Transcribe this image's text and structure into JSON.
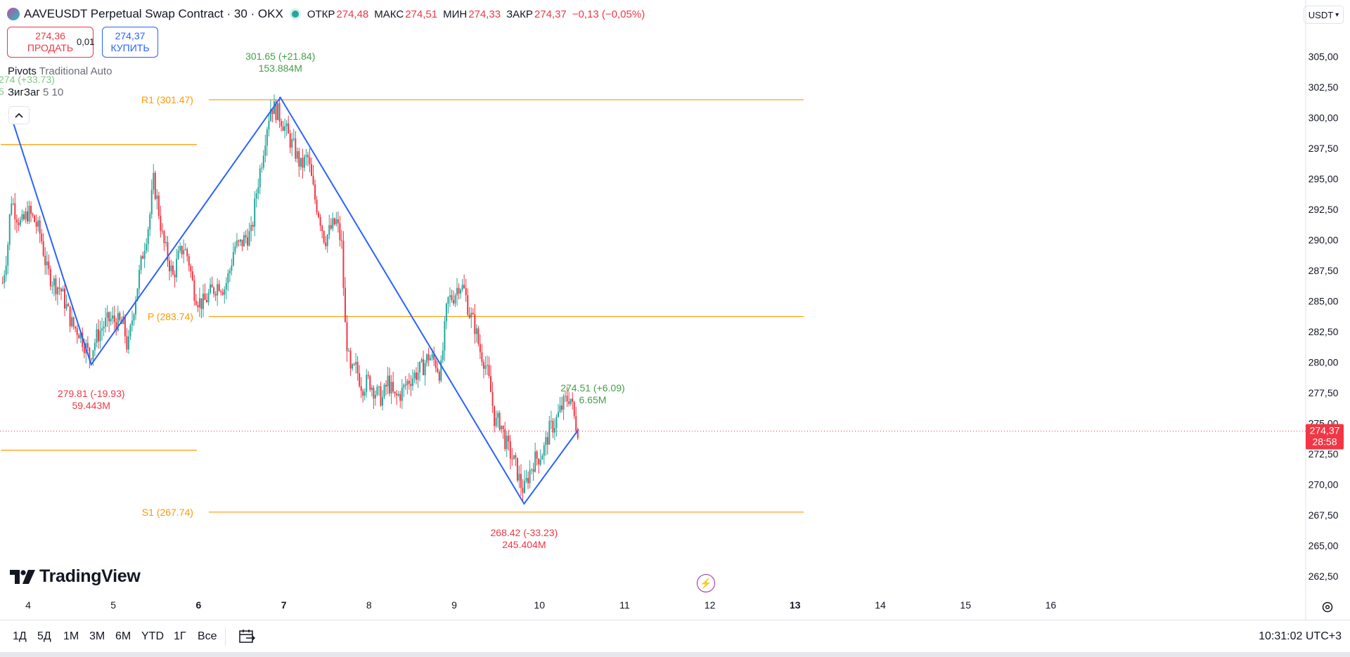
{
  "header": {
    "title": "AAVEUSDT Perpetual Swap Contract · 30 · OKX",
    "open_label": "ОТКР",
    "open": "274,48",
    "high_label": "МАКС",
    "high": "274,51",
    "low_label": "МИН",
    "low": "274,33",
    "close_label": "ЗАКР",
    "close": "274,37",
    "change": "−0,13 (−0,05%)"
  },
  "trade": {
    "sell_price": "274,36",
    "sell_label": "ПРОДАТЬ",
    "spread": "0,01",
    "buy_price": "274,37",
    "buy_label": "КУПИТЬ"
  },
  "indicators": [
    {
      "name": "Pivots",
      "params": "Traditional Auto"
    },
    {
      "name": "ЗигЗаг",
      "params": "5 10"
    }
  ],
  "currency": "USDT",
  "time_ranges": [
    "1Д",
    "5Д",
    "1М",
    "3М",
    "6М",
    "YTD",
    "1Г",
    "Все"
  ],
  "clock": "10:31:02 UTC+3",
  "branding": "TradingView",
  "colors": {
    "up": "#26a69a",
    "down": "#f23645",
    "zigzag": "#2962ff",
    "pivot": "#ff9800",
    "buy": "#2962ff"
  },
  "chart_data": {
    "type": "candlestick",
    "timeframe": "30",
    "x_ticks": [
      "4",
      "5",
      "6",
      "7",
      "8",
      "9",
      "10",
      "11",
      "12",
      "13",
      "14",
      "15",
      "16"
    ],
    "x_tick_values": [
      4,
      5,
      6,
      7,
      8,
      9,
      10,
      11,
      12,
      13,
      14,
      15,
      16
    ],
    "bold_x_ticks": [
      "6",
      "7",
      "13"
    ],
    "y_ticks": [
      "262,50",
      "265,00",
      "267,50",
      "270,00",
      "272,50",
      "275,00",
      "277,50",
      "280,00",
      "282,50",
      "285,00",
      "287,50",
      "290,00",
      "292,50",
      "295,00",
      "297,50",
      "300,00",
      "302,50",
      "305,00"
    ],
    "y_tick_values": [
      262.5,
      265,
      267.5,
      270,
      272.5,
      275,
      277.5,
      280,
      282.5,
      285,
      287.5,
      290,
      292.5,
      295,
      297.5,
      300,
      302.5,
      305
    ],
    "x_range": [
      3.68,
      16.1
    ],
    "y_range": [
      260.4,
      307.2
    ],
    "last_price": {
      "value": 274.37,
      "label": "274,37",
      "countdown": "28:58"
    },
    "price_path": [
      [
        3.7,
        286.5
      ],
      [
        3.76,
        289.5
      ],
      [
        3.8,
        293.5
      ],
      [
        3.85,
        292.3
      ],
      [
        3.92,
        291.2
      ],
      [
        4.0,
        292.3
      ],
      [
        4.08,
        291.5
      ],
      [
        4.15,
        290.3
      ],
      [
        4.22,
        287.5
      ],
      [
        4.3,
        286.5
      ],
      [
        4.38,
        286.0
      ],
      [
        4.45,
        284.5
      ],
      [
        4.52,
        283.0
      ],
      [
        4.6,
        282.5
      ],
      [
        4.66,
        281.5
      ],
      [
        4.72,
        280.5
      ],
      [
        4.8,
        282.0
      ],
      [
        4.88,
        283.0
      ],
      [
        4.96,
        283.5
      ],
      [
        5.04,
        283.3
      ],
      [
        5.12,
        283.0
      ],
      [
        5.17,
        281.0
      ],
      [
        5.24,
        284.5
      ],
      [
        5.3,
        287.0
      ],
      [
        5.36,
        289.5
      ],
      [
        5.42,
        291.5
      ],
      [
        5.47,
        294.8
      ],
      [
        5.52,
        293.0
      ],
      [
        5.58,
        290.0
      ],
      [
        5.64,
        288.5
      ],
      [
        5.7,
        287.0
      ],
      [
        5.76,
        288.5
      ],
      [
        5.82,
        289.5
      ],
      [
        5.88,
        288.5
      ],
      [
        5.94,
        286.0
      ],
      [
        6.0,
        285.0
      ],
      [
        6.06,
        284.8
      ],
      [
        6.12,
        285.5
      ],
      [
        6.18,
        286.0
      ],
      [
        6.24,
        286.5
      ],
      [
        6.3,
        286.0
      ],
      [
        6.36,
        287.3
      ],
      [
        6.42,
        289.5
      ],
      [
        6.48,
        289.5
      ],
      [
        6.55,
        290.2
      ],
      [
        6.62,
        290.5
      ],
      [
        6.68,
        294.0
      ],
      [
        6.74,
        296.5
      ],
      [
        6.8,
        299.3
      ],
      [
        6.85,
        301.0
      ],
      [
        6.92,
        300.5
      ],
      [
        6.98,
        299.8
      ],
      [
        7.05,
        298.5
      ],
      [
        7.12,
        297.5
      ],
      [
        7.2,
        296.0
      ],
      [
        7.28,
        296.8
      ],
      [
        7.36,
        293.5
      ],
      [
        7.42,
        292.0
      ],
      [
        7.48,
        290.0
      ],
      [
        7.56,
        291.0
      ],
      [
        7.62,
        291.5
      ],
      [
        7.68,
        289.5
      ],
      [
        7.72,
        283.0
      ],
      [
        7.78,
        279.0
      ],
      [
        7.85,
        279.5
      ],
      [
        7.92,
        278.0
      ],
      [
        8.0,
        278.5
      ],
      [
        8.08,
        277.5
      ],
      [
        8.16,
        277.0
      ],
      [
        8.22,
        278.5
      ],
      [
        8.3,
        277.0
      ],
      [
        8.38,
        277.5
      ],
      [
        8.46,
        278.5
      ],
      [
        8.54,
        279.0
      ],
      [
        8.62,
        279.5
      ],
      [
        8.7,
        280.5
      ],
      [
        8.78,
        280.0
      ],
      [
        8.84,
        279.0
      ],
      [
        8.92,
        285.0
      ],
      [
        9.0,
        285.5
      ],
      [
        9.06,
        286.5
      ],
      [
        9.12,
        285.8
      ],
      [
        9.18,
        284.0
      ],
      [
        9.24,
        283.0
      ],
      [
        9.3,
        281.0
      ],
      [
        9.36,
        280.0
      ],
      [
        9.42,
        278.0
      ],
      [
        9.48,
        275.0
      ],
      [
        9.54,
        275.2
      ],
      [
        9.6,
        273.5
      ],
      [
        9.66,
        272.5
      ],
      [
        9.72,
        271.5
      ],
      [
        9.78,
        270.0
      ],
      [
        9.82,
        269.5
      ],
      [
        9.88,
        271.0
      ],
      [
        9.94,
        272.0
      ],
      [
        10.0,
        272.3
      ],
      [
        10.06,
        273.0
      ],
      [
        10.12,
        274.5
      ],
      [
        10.18,
        275.0
      ],
      [
        10.24,
        276.0
      ],
      [
        10.3,
        276.8
      ],
      [
        10.36,
        277.3
      ],
      [
        10.42,
        275.0
      ],
      [
        10.46,
        274.4
      ]
    ],
    "zigzag": [
      {
        "x": 3.82,
        "y": 299.7
      },
      {
        "x": 4.74,
        "y": 279.81,
        "label": "279.81 (-19.93)",
        "volume": "59.443M"
      },
      {
        "x": 6.96,
        "y": 301.65,
        "label": "301.65 (+21.84)",
        "volume": "153.884M"
      },
      {
        "x": 9.82,
        "y": 268.42,
        "label": "268.42 (-33.23)",
        "volume": "245.404M"
      },
      {
        "x": 10.46,
        "y": 274.51,
        "label": "274.51 (+6.09)",
        "volume": "6.65M"
      }
    ],
    "zigzag_prev_label": "274 (+33.73)",
    "zigzag_prev_volume": "5",
    "pivots": [
      {
        "name": "R1",
        "value": 301.47,
        "label": "R1 (301.47)",
        "x_start": 6.12,
        "x_end": 13.1
      },
      {
        "name": "P",
        "value": 283.74,
        "label": "P (283.74)",
        "x_start": 6.12,
        "x_end": 13.1
      },
      {
        "name": "S1",
        "value": 267.74,
        "label": "S1 (267.74)",
        "x_start": 6.12,
        "x_end": 13.1
      },
      {
        "name": "prev-R1",
        "value": 297.8,
        "x_start": 3.68,
        "x_end": 5.98
      },
      {
        "name": "prev-S1",
        "value": 272.8,
        "x_start": 3.68,
        "x_end": 5.98
      }
    ]
  }
}
